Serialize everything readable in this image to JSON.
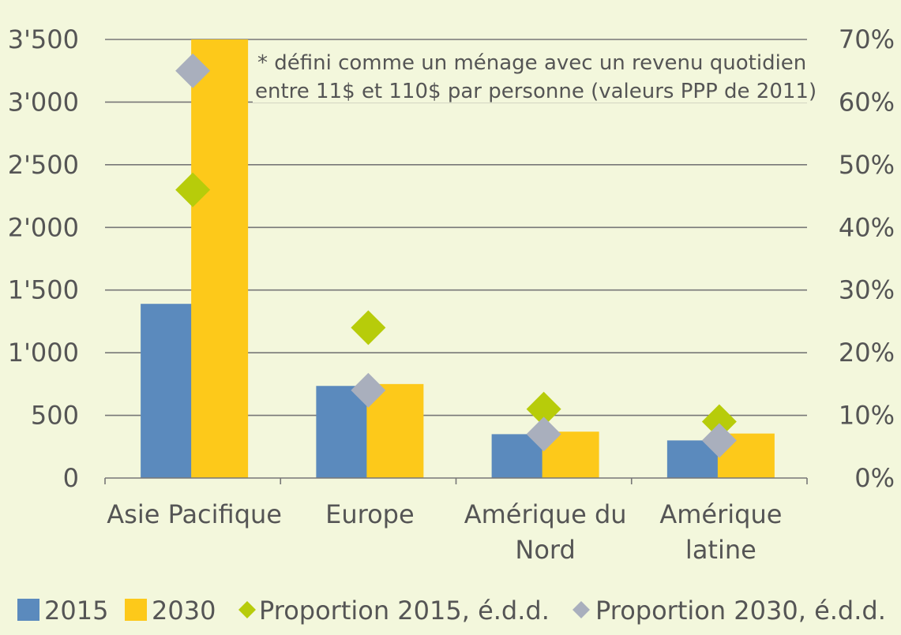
{
  "chart_data": {
    "type": "bar",
    "categories": [
      [
        "Asie Pacifique"
      ],
      [
        "Europe"
      ],
      [
        "Amérique du",
        "Nord"
      ],
      [
        "Amérique",
        "latine"
      ]
    ],
    "series": [
      {
        "name": "2015",
        "kind": "bar",
        "axis": "left",
        "color": "#5b8abd",
        "values": [
          1390,
          735,
          350,
          300
        ]
      },
      {
        "name": "2030",
        "kind": "bar",
        "axis": "left",
        "color": "#fdc91a",
        "values": [
          3500,
          750,
          370,
          355
        ]
      },
      {
        "name": "Proportion 2015, é.d.d.",
        "kind": "scatter",
        "axis": "right",
        "color": "#b7cc0a",
        "values": [
          46,
          24,
          11,
          9
        ]
      },
      {
        "name": "Proportion 2030, é.d.d.",
        "kind": "scatter",
        "axis": "right",
        "color": "#a9afbd",
        "values": [
          65,
          14,
          7,
          6
        ]
      }
    ],
    "y_left": {
      "range": [
        0,
        3500
      ],
      "ticks": [
        0,
        500,
        1000,
        1500,
        2000,
        2500,
        3000,
        3500
      ],
      "tick_labels": [
        "0",
        "500",
        "1'000",
        "1'500",
        "2'000",
        "2'500",
        "3'000",
        "3'500"
      ]
    },
    "y_right": {
      "range": [
        0,
        70
      ],
      "ticks": [
        0,
        10,
        20,
        30,
        40,
        50,
        60,
        70
      ],
      "tick_labels": [
        "0%",
        "10%",
        "20%",
        "30%",
        "40%",
        "50%",
        "60%",
        "70%"
      ]
    },
    "grid": true,
    "legend_position": "bottom",
    "annotation": [
      "* défini comme un ménage avec un revenu quotidien",
      "entre 11$ et 110$ par personne (valeurs PPP de 2011)"
    ]
  }
}
